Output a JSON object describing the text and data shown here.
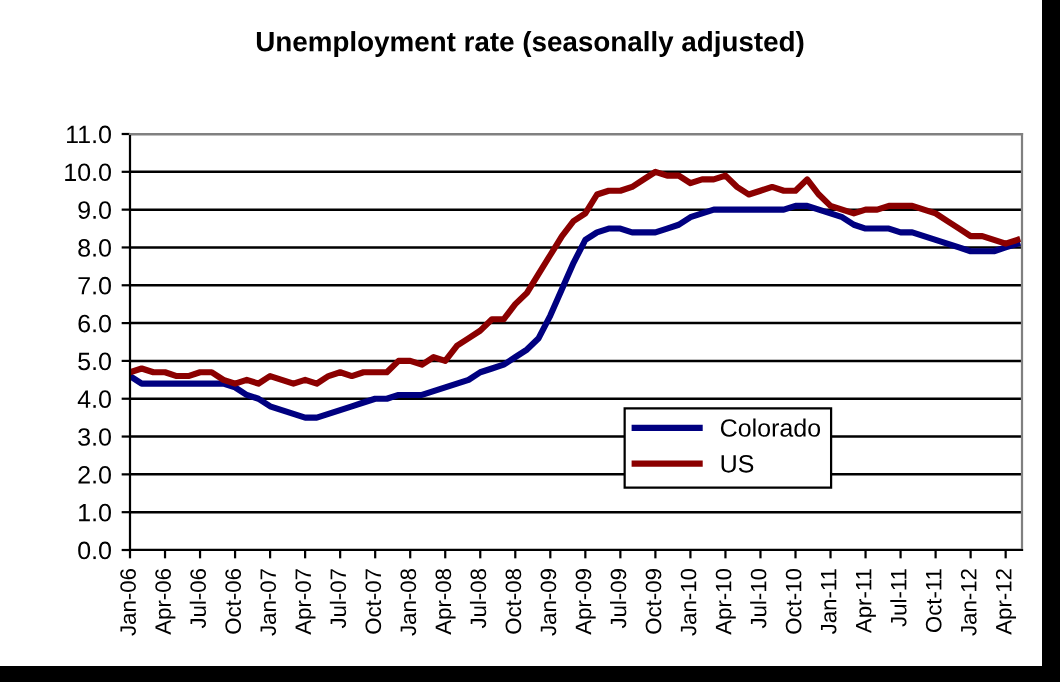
{
  "chart_data": {
    "type": "line",
    "title": "Unemployment rate (seasonally adjusted)",
    "categories": [
      "Jan-06",
      null,
      null,
      "Apr-06",
      null,
      null,
      "Jul-06",
      null,
      null,
      "Oct-06",
      null,
      null,
      "Jan-07",
      null,
      null,
      "Apr-07",
      null,
      null,
      "Jul-07",
      null,
      null,
      "Oct-07",
      null,
      null,
      "Jan-08",
      null,
      null,
      "Apr-08",
      null,
      null,
      "Jul-08",
      null,
      null,
      "Oct-08",
      null,
      null,
      "Jan-09",
      null,
      null,
      "Apr-09",
      null,
      null,
      "Jul-09",
      null,
      null,
      "Oct-09",
      null,
      null,
      "Jan-10",
      null,
      null,
      "Apr-10",
      null,
      null,
      "Jul-10",
      null,
      null,
      "Oct-10",
      null,
      null,
      "Jan-11",
      null,
      null,
      "Apr-11",
      null,
      null,
      "Jul-11",
      null,
      null,
      "Oct-11",
      null,
      null,
      "Jan-12",
      null,
      null,
      "Apr-12",
      null
    ],
    "series": [
      {
        "name": "Colorado",
        "color": "#000080",
        "values": [
          4.6,
          4.4,
          4.4,
          4.4,
          4.4,
          4.4,
          4.4,
          4.4,
          4.4,
          4.3,
          4.1,
          4.0,
          3.8,
          3.7,
          3.6,
          3.5,
          3.5,
          3.6,
          3.7,
          3.8,
          3.9,
          4.0,
          4.0,
          4.1,
          4.1,
          4.1,
          4.2,
          4.3,
          4.4,
          4.5,
          4.7,
          4.8,
          4.9,
          5.1,
          5.3,
          5.6,
          6.2,
          6.9,
          7.6,
          8.2,
          8.4,
          8.5,
          8.5,
          8.4,
          8.4,
          8.4,
          8.5,
          8.6,
          8.8,
          8.9,
          9.0,
          9.0,
          9.0,
          9.0,
          9.0,
          9.0,
          9.0,
          9.1,
          9.1,
          9.0,
          8.9,
          8.8,
          8.6,
          8.5,
          8.5,
          8.5,
          8.4,
          8.4,
          8.3,
          8.2,
          8.1,
          8.0,
          7.9,
          7.9,
          7.9,
          8.0,
          8.1
        ]
      },
      {
        "name": "US",
        "color": "#8b0000",
        "values": [
          4.7,
          4.8,
          4.7,
          4.7,
          4.6,
          4.6,
          4.7,
          4.7,
          4.5,
          4.4,
          4.5,
          4.4,
          4.6,
          4.5,
          4.4,
          4.5,
          4.4,
          4.6,
          4.7,
          4.6,
          4.7,
          4.7,
          4.7,
          5.0,
          5.0,
          4.9,
          5.1,
          5.0,
          5.4,
          5.6,
          5.8,
          6.1,
          6.1,
          6.5,
          6.8,
          7.3,
          7.8,
          8.3,
          8.7,
          8.9,
          9.4,
          9.5,
          9.5,
          9.6,
          9.8,
          10.0,
          9.9,
          9.9,
          9.7,
          9.8,
          9.8,
          9.9,
          9.6,
          9.4,
          9.5,
          9.6,
          9.5,
          9.5,
          9.8,
          9.4,
          9.1,
          9.0,
          8.9,
          9.0,
          9.0,
          9.1,
          9.1,
          9.1,
          9.0,
          8.9,
          8.7,
          8.5,
          8.3,
          8.3,
          8.2,
          8.1,
          8.2
        ]
      }
    ],
    "ylim": [
      0,
      11
    ],
    "yticks": [
      {
        "value": 0,
        "label": "0.0"
      },
      {
        "value": 1,
        "label": "1.0"
      },
      {
        "value": 2,
        "label": "2.0"
      },
      {
        "value": 3,
        "label": "3.0"
      },
      {
        "value": 4,
        "label": "4.0"
      },
      {
        "value": 5,
        "label": "5.0"
      },
      {
        "value": 6,
        "label": "6.0"
      },
      {
        "value": 7,
        "label": "7.0"
      },
      {
        "value": 8,
        "label": "8.0"
      },
      {
        "value": 9,
        "label": "9.0"
      },
      {
        "value": 10,
        "label": "10.0"
      },
      {
        "value": 11,
        "label": "11.0"
      }
    ],
    "grid": "y",
    "legend": "bottom right"
  }
}
